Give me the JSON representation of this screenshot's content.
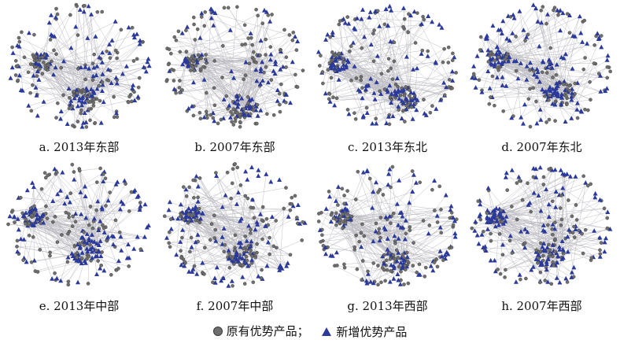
{
  "panels": [
    {
      "caption": "a. 2013年东部",
      "share_new": 0.45,
      "hubs": [
        [
          0.25,
          0.45
        ],
        [
          0.52,
          0.72
        ],
        [
          0.6,
          0.55
        ]
      ]
    },
    {
      "caption": "b. 2007年东部",
      "share_new": 0.38,
      "hubs": [
        [
          0.25,
          0.45
        ],
        [
          0.55,
          0.78
        ],
        [
          0.65,
          0.5
        ]
      ]
    },
    {
      "caption": "c. 2013年东北",
      "share_new": 0.55,
      "hubs": [
        [
          0.18,
          0.45
        ],
        [
          0.6,
          0.72
        ],
        [
          0.45,
          0.6
        ]
      ]
    },
    {
      "caption": "d. 2007年东北",
      "share_new": 0.6,
      "hubs": [
        [
          0.22,
          0.42
        ],
        [
          0.62,
          0.68
        ],
        [
          0.5,
          0.55
        ]
      ]
    },
    {
      "caption": "e. 2013年中部",
      "share_new": 0.55,
      "hubs": [
        [
          0.2,
          0.42
        ],
        [
          0.55,
          0.68
        ],
        [
          0.6,
          0.5
        ]
      ]
    },
    {
      "caption": "f. 2007年中部",
      "share_new": 0.5,
      "hubs": [
        [
          0.22,
          0.4
        ],
        [
          0.55,
          0.7
        ],
        [
          0.65,
          0.5
        ]
      ]
    },
    {
      "caption": "g. 2013年西部",
      "share_new": 0.45,
      "hubs": [
        [
          0.2,
          0.42
        ],
        [
          0.55,
          0.75
        ],
        [
          0.55,
          0.5
        ]
      ]
    },
    {
      "caption": "h. 2007年西部",
      "share_new": 0.6,
      "hubs": [
        [
          0.2,
          0.42
        ],
        [
          0.55,
          0.7
        ],
        [
          0.62,
          0.5
        ]
      ]
    }
  ],
  "legend": {
    "existing_label": "原有优势产品；",
    "new_label": "新增优势产品"
  },
  "colors": {
    "existing_node": "#6e6e6e",
    "existing_stroke": "#3a3a3a",
    "new_node": "#2b3a9a",
    "edge": "#b9b9bf"
  }
}
